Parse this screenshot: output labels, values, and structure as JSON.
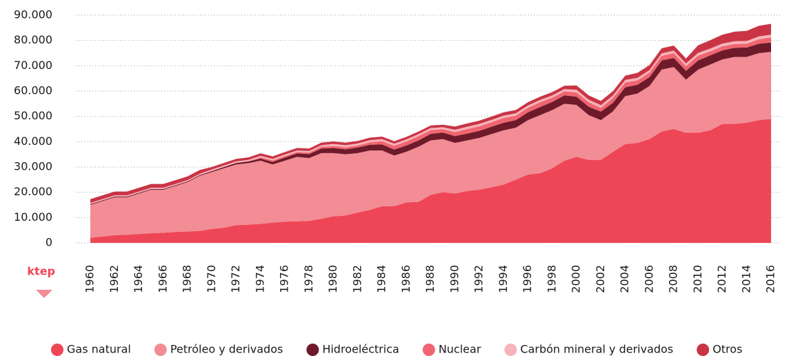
{
  "chart_data": {
    "type": "stacked-area",
    "y_label": "ktep",
    "x": [
      1960,
      1961,
      1962,
      1963,
      1964,
      1965,
      1966,
      1967,
      1968,
      1969,
      1970,
      1971,
      1972,
      1973,
      1974,
      1975,
      1976,
      1977,
      1978,
      1979,
      1980,
      1981,
      1982,
      1983,
      1984,
      1985,
      1986,
      1987,
      1988,
      1989,
      1990,
      1991,
      1992,
      1993,
      1994,
      1995,
      1996,
      1997,
      1998,
      1999,
      2000,
      2001,
      2002,
      2003,
      2004,
      2005,
      2006,
      2007,
      2008,
      2009,
      2010,
      2011,
      2012,
      2013,
      2014,
      2015,
      2016
    ],
    "xlim": [
      1960,
      2016
    ],
    "xticks": [
      1960,
      1962,
      1964,
      1966,
      1968,
      1970,
      1972,
      1974,
      1976,
      1978,
      1980,
      1982,
      1984,
      1986,
      1988,
      1990,
      1992,
      1994,
      1996,
      1998,
      2000,
      2002,
      2004,
      2006,
      2008,
      2010,
      2012,
      2014,
      2016
    ],
    "ylim": [
      0,
      90000
    ],
    "yticks": [
      0,
      {
        "value": 10000,
        "label": "10.000"
      },
      {
        "value": 20000,
        "label": "20.000"
      },
      {
        "value": 30000,
        "label": "30.000"
      },
      {
        "value": 40000,
        "label": "40.000"
      },
      {
        "value": 50000,
        "label": "50.000"
      },
      {
        "value": 60000,
        "label": "60.000"
      },
      {
        "value": 70000,
        "label": "70.000"
      },
      {
        "value": 80000,
        "label": "80.000"
      },
      {
        "value": 90000,
        "label": "90.000"
      }
    ],
    "grid": true,
    "legend": "bottom",
    "series": [
      {
        "name": "Gas natural",
        "color": "#ee4656",
        "values": [
          2000,
          2500,
          3000,
          3200,
          3500,
          3800,
          4000,
          4300,
          4500,
          4700,
          5500,
          6000,
          7000,
          7200,
          7500,
          8000,
          8400,
          8500,
          8700,
          9500,
          10500,
          10800,
          12000,
          13000,
          14500,
          14500,
          16000,
          16200,
          19000,
          20000,
          19500,
          20500,
          21000,
          22000,
          23000,
          25000,
          27000,
          27500,
          29500,
          32500,
          34000,
          32800,
          32800,
          36000,
          39000,
          39500,
          41000,
          44000,
          45000,
          43500,
          43500,
          44500,
          47000,
          47000,
          47500,
          48500,
          49000
        ]
      },
      {
        "name": "Petróleo y derivados",
        "color": "#f28c95",
        "values": [
          13000,
          14000,
          15000,
          14800,
          16000,
          17200,
          17000,
          18200,
          19500,
          21800,
          22500,
          23500,
          24000,
          24300,
          25000,
          23000,
          24100,
          25500,
          24800,
          26000,
          25000,
          24200,
          23500,
          23500,
          22000,
          20000,
          20000,
          21800,
          21500,
          21000,
          20000,
          20000,
          20500,
          21000,
          21500,
          20500,
          21500,
          23000,
          23000,
          22500,
          20500,
          17700,
          15700,
          16000,
          19000,
          19500,
          21000,
          24500,
          24500,
          21000,
          25000,
          26000,
          25500,
          26500,
          26000,
          26500,
          26500
        ]
      },
      {
        "name": "Hidroeléctrica",
        "color": "#6e1a2a",
        "values": [
          300,
          300,
          300,
          300,
          300,
          300,
          300,
          300,
          300,
          300,
          400,
          500,
          600,
          700,
          800,
          1000,
          1200,
          1400,
          1600,
          1800,
          2000,
          2000,
          2200,
          2300,
          2400,
          2400,
          2500,
          2500,
          2600,
          2600,
          2700,
          2700,
          2800,
          2900,
          3000,
          3000,
          3100,
          3200,
          3200,
          3300,
          3300,
          3300,
          3400,
          3400,
          3500,
          3500,
          3500,
          3600,
          3600,
          3500,
          3600,
          3600,
          3600,
          3600,
          3700,
          3700,
          3700
        ]
      },
      {
        "name": "Nuclear",
        "color": "#ef6670",
        "values": [
          0,
          0,
          0,
          0,
          0,
          0,
          0,
          0,
          0,
          0,
          0,
          0,
          0,
          0,
          500,
          600,
          600,
          500,
          600,
          700,
          800,
          800,
          800,
          1000,
          1300,
          1500,
          1600,
          1700,
          1500,
          1300,
          1600,
          1800,
          1800,
          1800,
          1900,
          1800,
          1800,
          1900,
          1700,
          1600,
          1700,
          1800,
          1500,
          1900,
          1900,
          1700,
          1800,
          1800,
          1900,
          1900,
          1900,
          1600,
          1600,
          1500,
          1500,
          1800,
          2000
        ]
      },
      {
        "name": "Carbón mineral y derivados",
        "color": "#f7b3ba",
        "values": [
          500,
          500,
          500,
          500,
          500,
          500,
          500,
          500,
          500,
          500,
          600,
          600,
          600,
          600,
          600,
          600,
          600,
          600,
          600,
          600,
          800,
          800,
          800,
          800,
          800,
          800,
          800,
          800,
          800,
          800,
          900,
          900,
          900,
          900,
          900,
          900,
          900,
          900,
          900,
          900,
          1000,
          1000,
          1000,
          1000,
          1000,
          1000,
          1000,
          1000,
          1000,
          1000,
          1100,
          1100,
          1100,
          1100,
          1100,
          1100,
          1100
        ]
      },
      {
        "name": "Otros",
        "color": "#c93545",
        "values": [
          1500,
          1500,
          1500,
          1500,
          1500,
          1500,
          1500,
          1500,
          1500,
          1500,
          1000,
          1000,
          1000,
          1000,
          1000,
          1000,
          1000,
          1000,
          1000,
          1000,
          1000,
          1000,
          1000,
          1000,
          1000,
          1000,
          1000,
          1000,
          1000,
          1000,
          1300,
          1300,
          1300,
          1300,
          1300,
          1300,
          1300,
          1300,
          1300,
          1300,
          1700,
          1700,
          1700,
          1700,
          1700,
          2000,
          2000,
          2000,
          2000,
          2000,
          3000,
          3300,
          3500,
          3800,
          4000,
          4200,
          4300
        ]
      }
    ]
  }
}
